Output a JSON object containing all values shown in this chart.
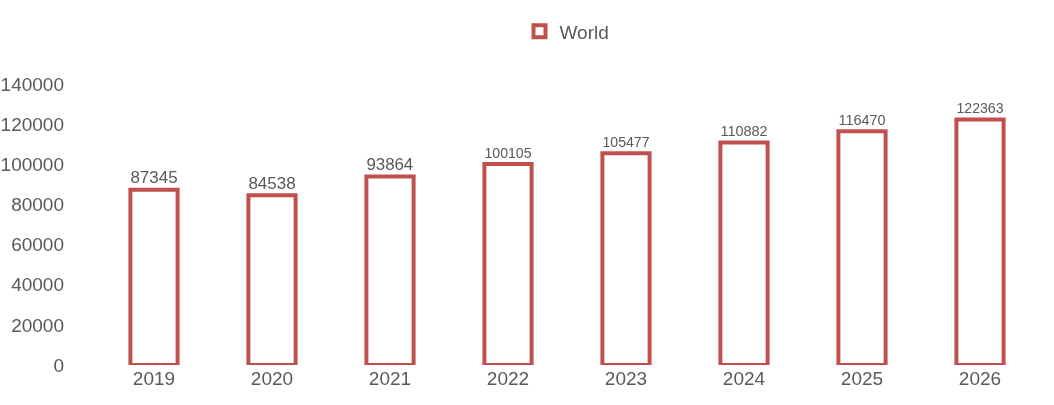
{
  "chart_data": {
    "type": "bar",
    "categories": [
      "2019",
      "2020",
      "2021",
      "2022",
      "2023",
      "2024",
      "2025",
      "2026"
    ],
    "series": [
      {
        "name": "World",
        "color": "#c0504d",
        "values": [
          87345,
          84538,
          93864,
          100105,
          105477,
          110882,
          116470,
          122363
        ]
      }
    ],
    "ylim": [
      0,
      140000
    ],
    "yticks": [
      0,
      20000,
      40000,
      60000,
      80000,
      100000,
      120000,
      140000
    ],
    "grid": false,
    "legend": "top",
    "data_labels": true
  }
}
